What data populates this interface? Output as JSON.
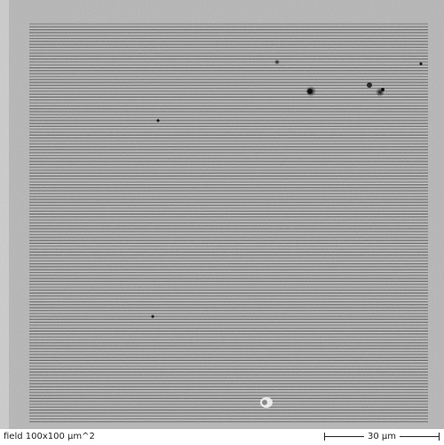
{
  "image": {
    "subject": "SEM micrograph of a square field filled with dense horizontal line grating on grainy grey background",
    "colors": {
      "background_grey": "#b5b5b5",
      "line_dark": "#3c3c3c",
      "border_light": "#cfcfcf"
    }
  },
  "caption": {
    "field_label": "field 100x100 µm^2",
    "scale_label": "30 µm"
  }
}
